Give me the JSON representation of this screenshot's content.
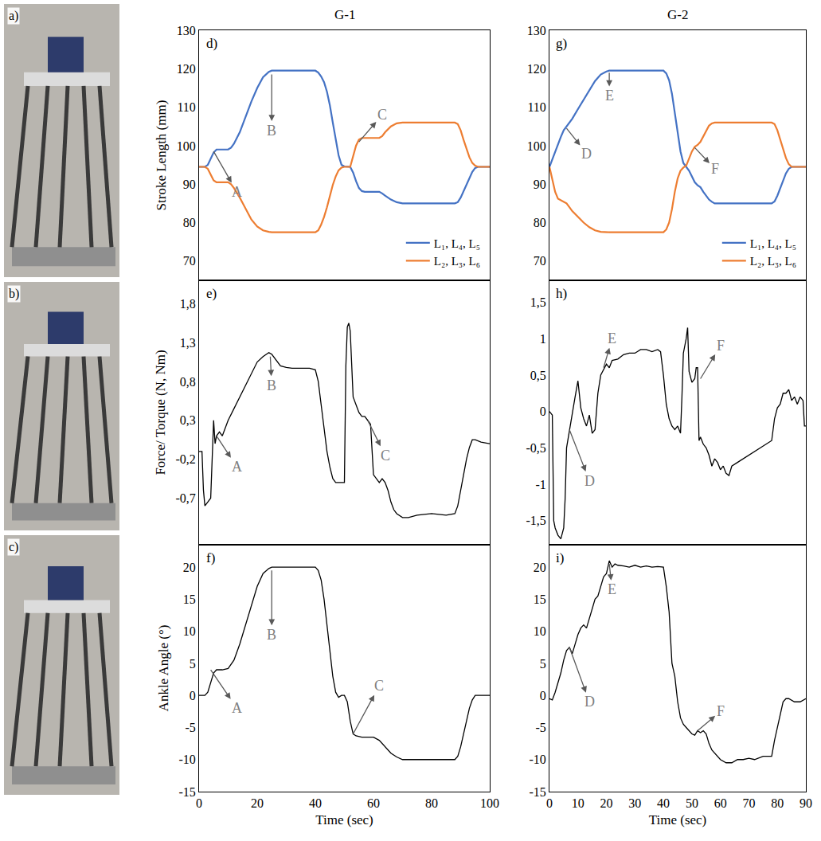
{
  "photos": [
    {
      "label": "a)"
    },
    {
      "label": "b)"
    },
    {
      "label": "c)"
    }
  ],
  "chart_data": [
    {
      "type": "line",
      "title": "G-1",
      "label": "d)",
      "ylabel": "Stroke Length (mm)",
      "xlim": [
        0,
        100
      ],
      "ylim": [
        65,
        130
      ],
      "yticks": [
        70,
        80,
        90,
        100,
        110,
        120,
        130
      ],
      "tick_labels": "y",
      "grid": false,
      "legend": "lower right",
      "x": [
        0,
        2,
        3,
        4,
        5,
        6,
        7,
        10,
        11,
        12,
        14,
        16,
        18,
        20,
        22,
        24,
        25,
        40,
        41,
        42,
        43,
        44,
        45,
        46,
        47,
        48,
        49,
        50,
        52,
        53,
        54,
        55,
        56,
        57,
        62,
        63,
        64,
        66,
        68,
        70,
        88,
        89,
        90,
        91,
        92,
        93,
        94,
        95,
        96,
        100
      ],
      "series": [
        {
          "name": "L₁, L₄, L₅",
          "color": "#4472c4",
          "values": [
            94.5,
            94.5,
            95,
            96.5,
            98.2,
            99,
            99,
            99,
            99.5,
            100.5,
            103.5,
            107.5,
            111.5,
            115,
            117.8,
            119.2,
            119.5,
            119.5,
            119,
            118,
            116.5,
            114,
            110.5,
            106,
            101.5,
            97.5,
            95,
            94.6,
            94.5,
            93,
            90.8,
            89,
            88.2,
            88,
            88,
            87.6,
            87,
            86,
            85.3,
            85,
            85,
            85.3,
            86.5,
            88.2,
            90,
            91.8,
            93.2,
            94.2,
            94.5,
            94.5
          ]
        },
        {
          "name": "L₂, L₃, L₆",
          "color": "#ed7d31",
          "values": [
            94.5,
            94.5,
            94,
            92.5,
            91,
            90.5,
            90.5,
            90.5,
            90,
            89,
            86.5,
            83.5,
            80.8,
            79,
            78,
            77.6,
            77.5,
            77.5,
            78,
            79.5,
            81.5,
            84,
            87,
            89.8,
            92,
            93.6,
            94.3,
            94.5,
            94.5,
            97,
            100,
            101.6,
            102,
            102,
            102,
            102.5,
            103.5,
            105,
            105.8,
            106,
            106,
            105.6,
            104,
            101.5,
            99,
            97,
            95.5,
            94.8,
            94.5,
            94.5
          ]
        }
      ],
      "annotations": [
        {
          "text": "A",
          "x": 5,
          "y": 98.5,
          "text_x": 13,
          "text_y": 88
        },
        {
          "text": "B",
          "x": 25,
          "y": 118.5,
          "text_x": 25,
          "text_y": 104
        },
        {
          "text": "C",
          "x": 55,
          "y": 101,
          "text_x": 63,
          "text_y": 108
        }
      ]
    },
    {
      "type": "line",
      "label": "e)",
      "ylabel": "Force/ Torque (N, Nm)",
      "xlim": [
        0,
        100
      ],
      "ylim": [
        -1.3,
        2.1
      ],
      "yticks": [
        {
          "value": -0.7,
          "label": "-0,7"
        },
        {
          "value": -0.2,
          "label": "-0,2"
        },
        {
          "value": 0.3,
          "label": "0,3"
        },
        {
          "value": 0.8,
          "label": "0,8"
        },
        {
          "value": 1.3,
          "label": "1,3"
        },
        {
          "value": 1.8,
          "label": "1,8"
        }
      ],
      "tick_labels": "y",
      "grid": false,
      "x": [
        0,
        1,
        1.5,
        2,
        3,
        4,
        5,
        5.5,
        6,
        7,
        8,
        9,
        10,
        12,
        14,
        16,
        18,
        20,
        22,
        24,
        25,
        26,
        28,
        30,
        32,
        35,
        38,
        40,
        41,
        42,
        43,
        44,
        45,
        46,
        47,
        48,
        49,
        50,
        50.5,
        51,
        51.5,
        52,
        53,
        54,
        55,
        56,
        57,
        58,
        59,
        60,
        61,
        62,
        63,
        64,
        65,
        66,
        67,
        68,
        70,
        72,
        75,
        80,
        85,
        88,
        89,
        90,
        91,
        92,
        93,
        94,
        95,
        97,
        100
      ],
      "series": [
        {
          "color": "#000000",
          "values": [
            -0.1,
            -0.1,
            -0.6,
            -0.8,
            -0.75,
            -0.7,
            0.3,
            0,
            0.1,
            0.15,
            0.1,
            0.2,
            0.3,
            0.45,
            0.6,
            0.75,
            0.9,
            1.05,
            1.12,
            1.17,
            1.15,
            1.1,
            1.0,
            0.98,
            0.97,
            0.97,
            0.97,
            0.95,
            0.8,
            0.5,
            0.2,
            -0.1,
            -0.3,
            -0.45,
            -0.5,
            -0.5,
            -0.5,
            -0.5,
            1.0,
            1.5,
            1.55,
            1.45,
            0.6,
            0.5,
            0.4,
            0.35,
            0.35,
            0.3,
            0.25,
            -0.4,
            -0.45,
            -0.5,
            -0.45,
            -0.5,
            -0.6,
            -0.75,
            -0.85,
            -0.9,
            -0.95,
            -0.95,
            -0.92,
            -0.9,
            -0.92,
            -0.9,
            -0.8,
            -0.6,
            -0.4,
            -0.2,
            -0.05,
            0.05,
            0.05,
            0.02,
            0
          ]
        }
      ],
      "annotations": [
        {
          "text": "A",
          "x": 6,
          "y": 0.1,
          "text_x": 13,
          "text_y": -0.3
        },
        {
          "text": "B",
          "x": 24.5,
          "y": 1.12,
          "text_x": 25,
          "text_y": 0.75
        },
        {
          "text": "C",
          "x": 58,
          "y": 0.3,
          "text_x": 64,
          "text_y": -0.15
        }
      ]
    },
    {
      "type": "line",
      "label": "f)",
      "ylabel": "Ankle Angle (°)",
      "xlabel": "Time (sec)",
      "xlim": [
        0,
        100
      ],
      "xticks": [
        0,
        20,
        40,
        60,
        80,
        100
      ],
      "ylim": [
        -15,
        23.5
      ],
      "yticks": [
        -15,
        -10,
        -5,
        0,
        5,
        10,
        15,
        20
      ],
      "grid": false,
      "x": [
        0,
        2,
        3,
        4,
        5,
        6,
        8,
        10,
        11,
        12,
        14,
        16,
        18,
        20,
        22,
        24,
        25,
        40,
        41,
        42,
        43,
        44,
        45,
        46,
        47,
        48,
        49,
        50,
        51,
        52,
        53,
        54,
        56,
        60,
        62,
        64,
        66,
        68,
        70,
        88,
        89,
        90,
        91,
        92,
        93,
        94,
        95,
        100
      ],
      "series": [
        {
          "color": "#000000",
          "values": [
            0,
            0,
            0.5,
            2,
            3.5,
            4,
            4,
            4.2,
            4.8,
            5.5,
            8,
            11,
            14,
            17,
            19,
            19.8,
            20,
            20,
            19.5,
            18,
            15,
            11,
            7,
            3,
            0.5,
            -0.3,
            0,
            0,
            -1,
            -4,
            -6,
            -6.3,
            -6.5,
            -6.5,
            -7,
            -8,
            -9,
            -9.6,
            -10,
            -10,
            -9.5,
            -8,
            -6,
            -4,
            -2,
            -0.7,
            0,
            0
          ]
        }
      ],
      "annotations": [
        {
          "text": "A",
          "x": 4,
          "y": 4,
          "text_x": 13,
          "text_y": -2
        },
        {
          "text": "B",
          "x": 25,
          "y": 19.5,
          "text_x": 25,
          "text_y": 9.5
        },
        {
          "text": "C",
          "x": 53,
          "y": -6,
          "text_x": 62,
          "text_y": 1.5
        }
      ]
    },
    {
      "type": "line",
      "title": "G-2",
      "label": "g)",
      "xlim": [
        0,
        90
      ],
      "ylim": [
        65,
        130
      ],
      "yticks": [
        70,
        80,
        90,
        100,
        110,
        120,
        130
      ],
      "tick_labels": "y",
      "grid": false,
      "legend": "lower right",
      "x": [
        0,
        1,
        2,
        3,
        4,
        5,
        6,
        7,
        8,
        10,
        12,
        14,
        16,
        18,
        20,
        21,
        40,
        41,
        42,
        43,
        44,
        45,
        46,
        47,
        48,
        49,
        50,
        51,
        52,
        53,
        54,
        55,
        56,
        57,
        58,
        78,
        79,
        80,
        81,
        82,
        83,
        84,
        85,
        90
      ],
      "series": [
        {
          "name": "L₁, L₄, L₅",
          "color": "#4472c4",
          "values": [
            94.5,
            96.5,
            98.5,
            100.5,
            102.3,
            104,
            105,
            105.8,
            107,
            109.5,
            112,
            114.5,
            116.8,
            118.5,
            119.3,
            119.5,
            119.5,
            118.8,
            117,
            113.5,
            108.5,
            103,
            98.5,
            95.5,
            94.5,
            93.5,
            92,
            90.5,
            89.7,
            89.2,
            88,
            87,
            86,
            85.4,
            85,
            85,
            85.5,
            87,
            89,
            91,
            92.8,
            94,
            94.5,
            94.5
          ]
        },
        {
          "name": "L₂, L₃, L₆",
          "color": "#ed7d31",
          "values": [
            94.5,
            91,
            88,
            86.2,
            85.8,
            85.5,
            85,
            84,
            83,
            81.5,
            80,
            78.8,
            78,
            77.6,
            77.5,
            77.5,
            77.5,
            78.2,
            80,
            83.5,
            88,
            91.5,
            93.5,
            94.3,
            94.8,
            96.5,
            98.5,
            99.7,
            100.2,
            101,
            102.5,
            104,
            105.2,
            105.8,
            106,
            106,
            105.6,
            104,
            101.5,
            99,
            96.8,
            95.2,
            94.5,
            94.5
          ]
        }
      ],
      "annotations": [
        {
          "text": "D",
          "x": 6,
          "y": 104.5,
          "text_x": 13,
          "text_y": 98
        },
        {
          "text": "E",
          "x": 21,
          "y": 119,
          "text_x": 21,
          "text_y": 113
        },
        {
          "text": "F",
          "x": 51,
          "y": 99.5,
          "text_x": 58,
          "text_y": 94
        }
      ]
    },
    {
      "type": "line",
      "label": "h)",
      "xlim": [
        0,
        90
      ],
      "ylim": [
        -1.83,
        1.8
      ],
      "yticks": [
        {
          "value": -1.5,
          "label": "-1,5"
        },
        -1,
        {
          "value": -0.5,
          "label": "-0,5"
        },
        0,
        {
          "value": 0.5,
          "label": "0,5"
        },
        1,
        {
          "value": 1.5,
          "label": "1,5"
        }
      ],
      "tick_labels": "y",
      "grid": false,
      "x": [
        0,
        1,
        1.5,
        2,
        3,
        4,
        5,
        5.5,
        6,
        7,
        8,
        9,
        10,
        11,
        12,
        13,
        14,
        15,
        16,
        17,
        18,
        19,
        20,
        21,
        22,
        24,
        26,
        28,
        30,
        32,
        34,
        36,
        38,
        39,
        40,
        41,
        42,
        43,
        44,
        45,
        46,
        46.5,
        47,
        48,
        48.5,
        49,
        50,
        51,
        51.5,
        52,
        52.5,
        53,
        54,
        55,
        56,
        57,
        58,
        59,
        60,
        61,
        62,
        63,
        64,
        66,
        68,
        70,
        72,
        74,
        76,
        78,
        79,
        80,
        81,
        82,
        83,
        84,
        85,
        86,
        87,
        88,
        89,
        89.5,
        90
      ],
      "series": [
        {
          "color": "#000000",
          "values": [
            0,
            -0.05,
            -1.5,
            -1.6,
            -1.7,
            -1.75,
            -1.6,
            -1.2,
            -0.5,
            -0.25,
            0,
            0.2,
            0.42,
            0.05,
            -0.1,
            -0.2,
            -0.05,
            -0.3,
            -0.25,
            0.25,
            0.5,
            0.58,
            0.65,
            0.6,
            0.7,
            0.72,
            0.78,
            0.8,
            0.8,
            0.85,
            0.85,
            0.82,
            0.85,
            0.82,
            0.5,
            0.1,
            -0.1,
            -0.2,
            -0.25,
            -0.2,
            -0.3,
            0.2,
            0.8,
            1.0,
            1.15,
            0.55,
            0.4,
            0.45,
            0.6,
            0.6,
            -0.4,
            -0.35,
            -0.45,
            -0.5,
            -0.6,
            -0.75,
            -0.65,
            -0.7,
            -0.8,
            -0.75,
            -0.85,
            -0.88,
            -0.75,
            -0.7,
            -0.65,
            -0.6,
            -0.55,
            -0.5,
            -0.45,
            -0.4,
            -0.1,
            0.05,
            0.1,
            0.25,
            0.25,
            0.3,
            0.15,
            0.2,
            0.1,
            0.2,
            0.15,
            -0.2,
            -0.2
          ]
        }
      ],
      "annotations": [
        {
          "text": "D",
          "x": 7,
          "y": -0.25,
          "text_x": 14,
          "text_y": -0.95
        },
        {
          "text": "E",
          "x": 19,
          "y": 0.6,
          "text_x": 22,
          "text_y": 1.0
        },
        {
          "text": "F",
          "x": 53,
          "y": 0.45,
          "text_x": 60,
          "text_y": 0.9
        }
      ]
    },
    {
      "type": "line",
      "label": "i)",
      "xlabel": "Time (sec)",
      "xlim": [
        0,
        90
      ],
      "xticks": [
        0,
        10,
        20,
        30,
        40,
        50,
        60,
        70,
        80,
        90
      ],
      "ylim": [
        -15,
        23.5
      ],
      "yticks": [
        -15,
        -10,
        -5,
        0,
        5,
        10,
        15,
        20
      ],
      "grid": false,
      "x": [
        0,
        1,
        2,
        3,
        4,
        5,
        6,
        7,
        8,
        9,
        10,
        11,
        12,
        13,
        14,
        15,
        16,
        17,
        18,
        19,
        20,
        21,
        22,
        23,
        24,
        26,
        28,
        30,
        32,
        34,
        36,
        38,
        40,
        41,
        42,
        43,
        44,
        45,
        46,
        47,
        48,
        49,
        50,
        51,
        52,
        53,
        54,
        55,
        56,
        57,
        58,
        59,
        60,
        62,
        64,
        66,
        68,
        70,
        72,
        75,
        78,
        79,
        80,
        81,
        82,
        83,
        84,
        86,
        88,
        90
      ],
      "series": [
        {
          "color": "#000000",
          "values": [
            -0.5,
            -0.7,
            0.5,
            2,
            3.5,
            5.5,
            7,
            7.5,
            6.5,
            8,
            9.5,
            10.5,
            11,
            10.5,
            12,
            13.5,
            15,
            15.5,
            17,
            18.5,
            19,
            21,
            20,
            20.5,
            20.3,
            20.2,
            20,
            20.3,
            20,
            20.2,
            20,
            20.1,
            20,
            17,
            13,
            5,
            3,
            -1,
            -3.5,
            -4.5,
            -5,
            -5.5,
            -6,
            -6.2,
            -5.5,
            -5.8,
            -5.5,
            -6,
            -7.5,
            -8.5,
            -9,
            -9.5,
            -10,
            -10.5,
            -10.5,
            -10,
            -10,
            -9.8,
            -10,
            -9.5,
            -9.5,
            -7,
            -5,
            -3,
            -1,
            -0.5,
            -0.5,
            -1,
            -1,
            -0.5
          ]
        }
      ],
      "annotations": [
        {
          "text": "D",
          "x": 7,
          "y": 7.5,
          "text_x": 14,
          "text_y": -1
        },
        {
          "text": "E",
          "x": 21,
          "y": 20.5,
          "text_x": 22,
          "text_y": 16.5
        },
        {
          "text": "F",
          "x": 52,
          "y": -5.5,
          "text_x": 60,
          "text_y": -2.5
        }
      ]
    }
  ]
}
